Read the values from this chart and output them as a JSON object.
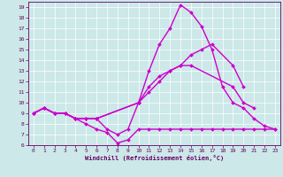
{
  "xlabel": "Windchill (Refroidissement éolien,°C)",
  "xlim": [
    -0.5,
    23.5
  ],
  "ylim": [
    6,
    19.5
  ],
  "xticks": [
    0,
    1,
    2,
    3,
    4,
    5,
    6,
    7,
    8,
    9,
    10,
    11,
    12,
    13,
    14,
    15,
    16,
    17,
    18,
    19,
    20,
    21,
    22,
    23
  ],
  "yticks": [
    6,
    7,
    8,
    9,
    10,
    11,
    12,
    13,
    14,
    15,
    16,
    17,
    18,
    19
  ],
  "bg_color": "#cce8e8",
  "line_color": "#cc00cc",
  "line_width": 1.0,
  "marker": "D",
  "marker_size": 2.0,
  "lines": [
    {
      "x": [
        0,
        1,
        2,
        3,
        4,
        5,
        6,
        7,
        8,
        9,
        10,
        11,
        12,
        13,
        14,
        15,
        16,
        17,
        18,
        19,
        20,
        21,
        22,
        23
      ],
      "y": [
        9.0,
        9.5,
        9.0,
        9.0,
        8.5,
        8.0,
        7.5,
        7.2,
        6.2,
        6.5,
        7.5,
        7.5,
        7.5,
        7.5,
        7.5,
        7.5,
        7.5,
        7.5,
        7.5,
        7.5,
        7.5,
        7.5,
        7.5,
        7.5
      ]
    },
    {
      "x": [
        0,
        1,
        2,
        3,
        4,
        5,
        6,
        7,
        8,
        9,
        10,
        11,
        12,
        13,
        14,
        15,
        16,
        17,
        18,
        19,
        20,
        21,
        22,
        23
      ],
      "y": [
        9.0,
        9.5,
        9.0,
        9.0,
        8.5,
        8.5,
        8.5,
        7.5,
        7.0,
        7.5,
        10.0,
        13.0,
        15.5,
        17.0,
        19.2,
        18.5,
        17.2,
        15.0,
        11.5,
        10.0,
        9.5,
        8.5,
        7.8,
        7.5
      ]
    },
    {
      "x": [
        0,
        1,
        2,
        3,
        4,
        5,
        6,
        10,
        11,
        12,
        13,
        14,
        15,
        16,
        17,
        19,
        20
      ],
      "y": [
        9.0,
        9.5,
        9.0,
        9.0,
        8.5,
        8.5,
        8.5,
        10.0,
        11.5,
        12.5,
        13.0,
        13.5,
        14.5,
        15.0,
        15.5,
        13.5,
        11.5
      ]
    },
    {
      "x": [
        0,
        1,
        2,
        3,
        4,
        5,
        6,
        10,
        11,
        12,
        13,
        14,
        15,
        19,
        20,
        21
      ],
      "y": [
        9.0,
        9.5,
        9.0,
        9.0,
        8.5,
        8.5,
        8.5,
        10.0,
        11.0,
        12.0,
        13.0,
        13.5,
        13.5,
        11.5,
        10.0,
        9.5
      ]
    }
  ]
}
